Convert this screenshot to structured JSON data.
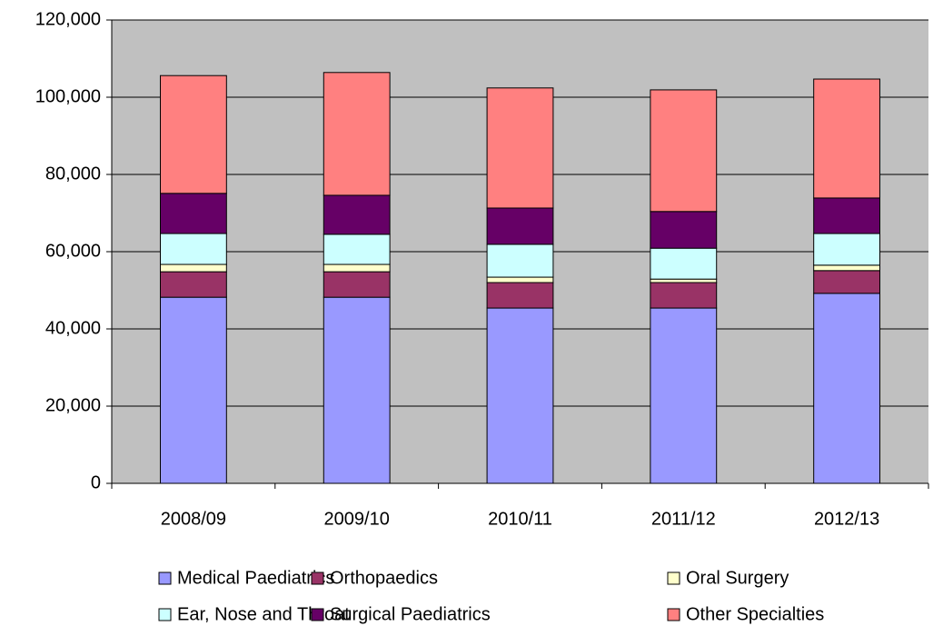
{
  "chart_data": {
    "type": "stacked-bar",
    "categories": [
      "2008/09",
      "2009/10",
      "2010/11",
      "2011/12",
      "2012/13"
    ],
    "series": [
      {
        "name": "Medical Paediatrics",
        "color": "#9999ff",
        "values": [
          48200,
          48200,
          45400,
          45400,
          49200
        ]
      },
      {
        "name": "Orthopaedics",
        "color": "#993366",
        "values": [
          6600,
          6600,
          6600,
          6600,
          5900
        ]
      },
      {
        "name": "Oral Surgery",
        "color": "#ffffcc",
        "values": [
          1900,
          1900,
          1400,
          900,
          1400
        ]
      },
      {
        "name": "Ear, Nose and Throat",
        "color": "#ccffff",
        "values": [
          8000,
          7800,
          8500,
          8000,
          8200
        ]
      },
      {
        "name": "Surgical Paediatrics",
        "color": "#660066",
        "values": [
          10400,
          10100,
          9400,
          9500,
          9200
        ]
      },
      {
        "name": "Other Specialties",
        "color": "#ff8080",
        "values": [
          30500,
          31800,
          31100,
          31500,
          30800
        ]
      }
    ],
    "ylim": [
      0,
      120000
    ],
    "yticks": [
      0,
      {
        "value": 20000,
        "label": "20,000"
      },
      {
        "value": 40000,
        "label": "40,000"
      },
      {
        "value": 60000,
        "label": "60,000"
      },
      {
        "value": 80000,
        "label": "80,000"
      },
      {
        "value": 100000,
        "label": "100,000"
      },
      {
        "value": 120000,
        "label": "120,000"
      }
    ],
    "grid": true,
    "plot_background": "#c0c0c0",
    "legend": "bottom"
  }
}
